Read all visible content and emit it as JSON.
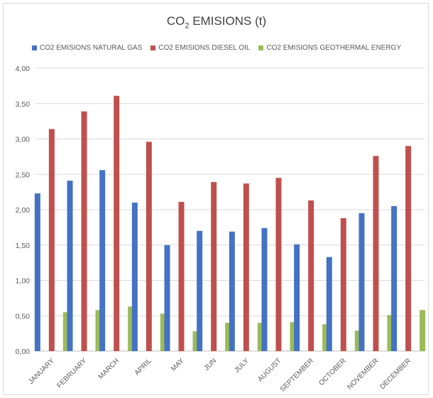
{
  "chart_data": {
    "type": "bar",
    "title_main": "CO",
    "title_sub": "2",
    "title_rest": " EMISIONS (t)",
    "categories": [
      "JANUARY",
      "FEBRUARY",
      "MARCH",
      "APRIL",
      "MAY",
      "JUN",
      "JULY",
      "AUGUST",
      "SEPTEMBER",
      "OCTOBER",
      "NOVEMBER",
      "DECEMBER"
    ],
    "series": [
      {
        "name": "CO2 EMISIONS NATURAL GAS",
        "color": "#4472c4",
        "values": [
          2.23,
          2.41,
          2.56,
          2.1,
          1.5,
          1.7,
          1.69,
          1.74,
          1.51,
          1.33,
          1.95,
          2.05
        ]
      },
      {
        "name": "CO2 EMISIONS DIESEL OIL",
        "color": "#c0504d",
        "values": [
          3.14,
          3.39,
          3.61,
          2.96,
          2.11,
          2.39,
          2.37,
          2.45,
          2.13,
          1.88,
          2.76,
          2.9
        ]
      },
      {
        "name": "CO2 EMISIONS GEOTHERMAL ENERGY",
        "color": "#9bbb59",
        "values": [
          0.55,
          0.58,
          0.63,
          0.53,
          0.28,
          0.4,
          0.4,
          0.41,
          0.38,
          0.29,
          0.51,
          0.58
        ]
      }
    ],
    "y_ticks": [
      "0,00",
      "0,50",
      "1,00",
      "1,50",
      "2,00",
      "2,50",
      "3,00",
      "3,50",
      "4,00"
    ],
    "ylim": [
      0,
      4
    ],
    "grid": true,
    "legend_position": "top"
  }
}
